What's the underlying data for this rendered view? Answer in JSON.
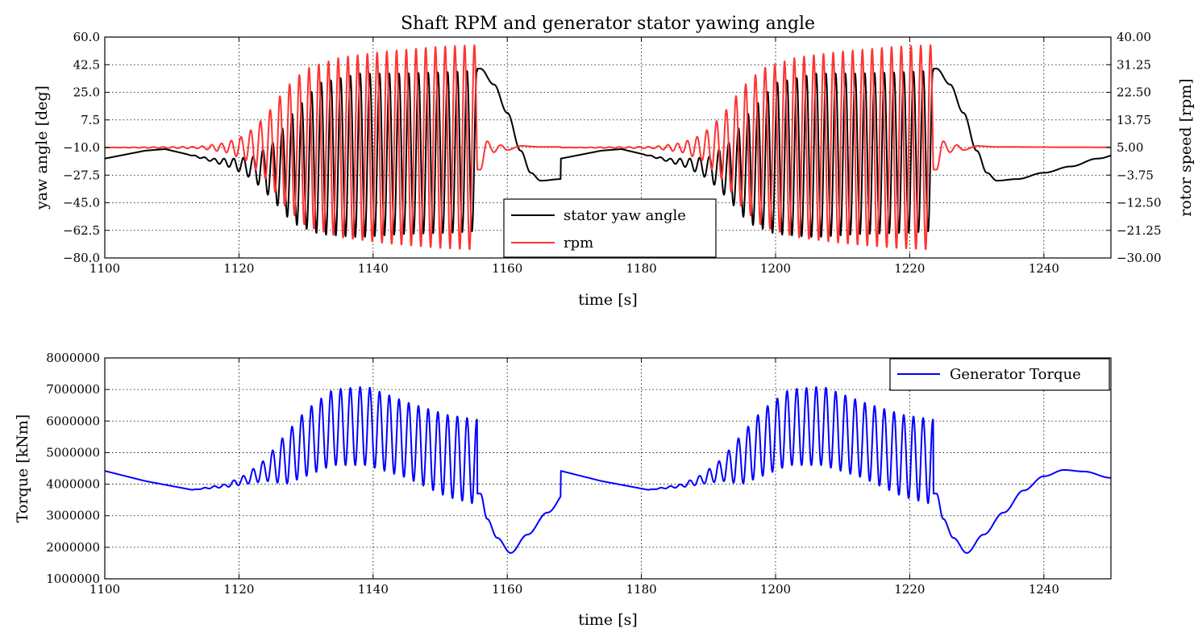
{
  "chart_data": [
    {
      "type": "line",
      "title": "Shaft RPM and generator stator yawing angle",
      "xlabel": "time [s]",
      "ylabel": "yaw angle [deg]",
      "y2label": "rotor speed [rpm]",
      "xlim": [
        1100,
        1250
      ],
      "ylim": [
        -80,
        60
      ],
      "y2lim": [
        -30,
        40
      ],
      "xticks": [
        "1100",
        "1120",
        "1140",
        "1160",
        "1180",
        "1200",
        "1220",
        "1240"
      ],
      "yticks": [
        "−80.0",
        "−62.5",
        "−45.0",
        "−27.5",
        "−10.0",
        "7.5",
        "25.0",
        "42.5",
        "60.0"
      ],
      "y2ticks": [
        "−30.00",
        "−21.25",
        "−12.50",
        "−3.75",
        "5.00",
        "13.75",
        "22.50",
        "31.25",
        "40.00"
      ],
      "grid": true,
      "legend_position": "lower-center",
      "series": [
        {
          "name": "stator yaw angle",
          "axis": "left",
          "color": "#000000",
          "representation": "oscillating; x = time [s], y = yaw angle [deg]",
          "envelope": [
            {
              "t": 1100,
              "base": -17,
              "amp": 0
            },
            {
              "t": 1106,
              "base": -12,
              "amp": 0
            },
            {
              "t": 1109,
              "base": -11,
              "amp": 0
            },
            {
              "t": 1112,
              "base": -14,
              "amp": 0
            },
            {
              "t": 1116,
              "base": -18,
              "amp": 1
            },
            {
              "t": 1119,
              "base": -20,
              "amp": 3
            },
            {
              "t": 1122,
              "base": -23,
              "amp": 7
            },
            {
              "t": 1125,
              "base": -25,
              "amp": 18
            },
            {
              "t": 1128,
              "base": -23,
              "amp": 35
            },
            {
              "t": 1132,
              "base": -17,
              "amp": 48
            },
            {
              "t": 1138,
              "base": -15,
              "amp": 52
            },
            {
              "t": 1144,
              "base": -14,
              "amp": 51
            },
            {
              "t": 1152,
              "base": -13,
              "amp": 51
            },
            {
              "t": 1155.5,
              "base": -12,
              "amp": 51
            }
          ],
          "settle": [
            [
              1156,
              40
            ],
            [
              1158,
              30
            ],
            [
              1160,
              12
            ],
            [
              1162,
              -12
            ],
            [
              1163.5,
              -26
            ],
            [
              1165,
              -31
            ],
            [
              1168,
              -30
            ],
            [
              1172,
              -26
            ],
            [
              1176,
              -22
            ],
            [
              1180,
              -17
            ],
            [
              1184,
              -13
            ],
            [
              1188,
              -12
            ],
            [
              1190,
              -13
            ]
          ],
          "period_s": 1.45,
          "repeat_offset_s": 68
        },
        {
          "name": "rpm",
          "axis": "right",
          "color": "#ff3333",
          "representation": "oscillating; x = time [s], y = rotor speed [rpm]",
          "envelope": [
            {
              "t": 1100,
              "base": 5,
              "amp": 0
            },
            {
              "t": 1114,
              "base": 5,
              "amp": 0.3
            },
            {
              "t": 1118,
              "base": 5,
              "amp": 1.5
            },
            {
              "t": 1121,
              "base": 5,
              "amp": 4
            },
            {
              "t": 1124,
              "base": 5,
              "amp": 10
            },
            {
              "t": 1127,
              "base": 5,
              "amp": 19
            },
            {
              "t": 1130,
              "base": 5,
              "amp": 25
            },
            {
              "t": 1135,
              "base": 5,
              "amp": 28.5
            },
            {
              "t": 1142,
              "base": 5,
              "amp": 30.5
            },
            {
              "t": 1150,
              "base": 5,
              "amp": 32
            },
            {
              "t": 1155.5,
              "base": 5,
              "amp": 32.5
            }
          ],
          "settle": [
            [
              1156,
              -2
            ],
            [
              1157,
              7
            ],
            [
              1158,
              3.5
            ],
            [
              1159,
              5.8
            ],
            [
              1160,
              4.2
            ],
            [
              1162,
              5.5
            ],
            [
              1165,
              5.2
            ],
            [
              1175,
              5.1
            ],
            [
              1190,
              5
            ]
          ],
          "period_s": 1.45,
          "repeat_offset_s": 68
        }
      ]
    },
    {
      "type": "line",
      "title": "",
      "xlabel": "time [s]",
      "ylabel": "Torque [kNm]",
      "xlim": [
        1100,
        1250
      ],
      "ylim": [
        1000000,
        8000000
      ],
      "xticks": [
        "1100",
        "1120",
        "1140",
        "1160",
        "1180",
        "1200",
        "1220",
        "1240"
      ],
      "yticks": [
        "1000000",
        "2000000",
        "3000000",
        "4000000",
        "5000000",
        "6000000",
        "7000000",
        "8000000"
      ],
      "grid": true,
      "legend_position": "top-right",
      "series": [
        {
          "name": "Generator Torque",
          "color": "#0000ff",
          "representation": "oscillating; x = time [s], y = torque [kNm]",
          "envelope": [
            {
              "t": 1100,
              "base": 4420000,
              "amp": 0
            },
            {
              "t": 1106,
              "base": 4100000,
              "amp": 0
            },
            {
              "t": 1113,
              "base": 3820000,
              "amp": 0
            },
            {
              "t": 1118,
              "base": 3950000,
              "amp": 50000
            },
            {
              "t": 1121,
              "base": 4150000,
              "amp": 150000
            },
            {
              "t": 1124,
              "base": 4450000,
              "amp": 350000
            },
            {
              "t": 1127,
              "base": 4800000,
              "amp": 800000
            },
            {
              "t": 1130,
              "base": 5300000,
              "amp": 1050000
            },
            {
              "t": 1134,
              "base": 5800000,
              "amp": 1200000
            },
            {
              "t": 1139,
              "base": 5850000,
              "amp": 1250000
            },
            {
              "t": 1145,
              "base": 5400000,
              "amp": 1200000
            },
            {
              "t": 1151,
              "base": 4900000,
              "amp": 1300000
            },
            {
              "t": 1155.5,
              "base": 4700000,
              "amp": 1350000
            }
          ],
          "settle": [
            [
              1156,
              3700000
            ],
            [
              1157,
              2900000
            ],
            [
              1158.5,
              2300000
            ],
            [
              1160.5,
              1820000
            ],
            [
              1163,
              2400000
            ],
            [
              1166,
              3100000
            ],
            [
              1169,
              3800000
            ],
            [
              1172,
              4250000
            ],
            [
              1175,
              4450000
            ],
            [
              1178,
              4400000
            ],
            [
              1182,
              4200000
            ],
            [
              1186,
              4000000
            ],
            [
              1190,
              3900000
            ]
          ],
          "period_s": 1.45,
          "repeat_offset_s": 68
        }
      ]
    }
  ]
}
